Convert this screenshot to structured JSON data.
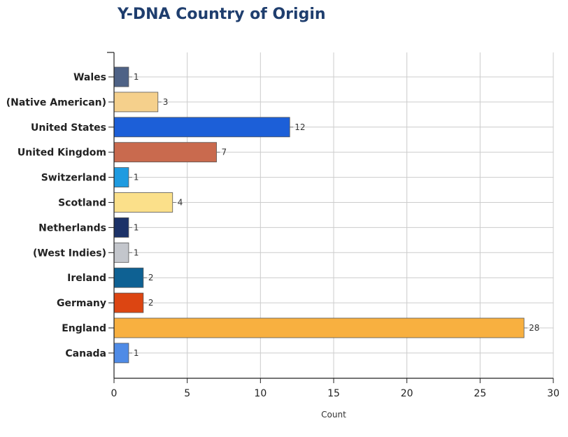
{
  "chart_data": {
    "type": "bar",
    "orientation": "horizontal",
    "title": "Y-DNA Country of Origin",
    "xlabel": "Count",
    "ylabel": "",
    "xlim": [
      0,
      30
    ],
    "xticks": [
      0,
      5,
      10,
      15,
      20,
      25,
      30
    ],
    "grid": true,
    "categories": [
      "Wales",
      "(Native American)",
      "United States",
      "United Kingdom",
      "Switzerland",
      "Scotland",
      "Netherlands",
      "(West Indies)",
      "Ireland",
      "Germany",
      "England",
      "Canada"
    ],
    "values": [
      1,
      3,
      12,
      7,
      1,
      4,
      1,
      1,
      2,
      2,
      28,
      1
    ],
    "colors": [
      "#4e6286",
      "#f5d08c",
      "#1c5fd8",
      "#c96a4e",
      "#1f9be0",
      "#fbe08a",
      "#1c3268",
      "#c3c6cc",
      "#0e6193",
      "#dc4512",
      "#f8b040",
      "#4f8be6"
    ]
  }
}
